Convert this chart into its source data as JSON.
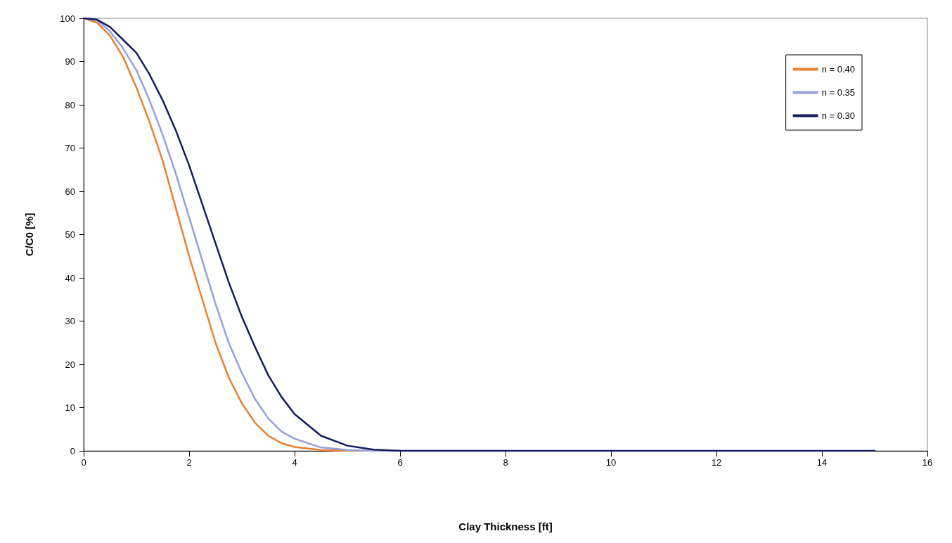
{
  "chart_data": {
    "type": "line",
    "xlabel": "Clay Thickness [ft]",
    "ylabel": "C/C0 [%]",
    "xlim": [
      0,
      16
    ],
    "xticks": [
      0,
      2,
      4,
      6,
      8,
      10,
      12,
      14,
      16
    ],
    "ylim": [
      0,
      100
    ],
    "yticks": [
      0,
      10,
      20,
      30,
      40,
      50,
      60,
      70,
      80,
      90,
      100
    ],
    "grid": false,
    "legend": "top right",
    "marker": "none",
    "line_style": "solid",
    "x": [
      0,
      0.25,
      0.5,
      0.75,
      1,
      1.25,
      1.5,
      1.75,
      2,
      2.25,
      2.5,
      2.75,
      3,
      3.25,
      3.5,
      3.75,
      4,
      4.5,
      5,
      5.5,
      6,
      8,
      10,
      12,
      14,
      15
    ],
    "series": [
      {
        "name": "n = 0.40",
        "color": "#e8812f",
        "values": [
          100,
          99,
          96,
          91,
          84,
          76,
          67,
          56,
          45,
          35,
          25,
          17,
          11,
          6.5,
          3.5,
          1.8,
          0.9,
          0.2,
          0,
          0,
          null,
          null,
          null,
          null,
          null,
          null
        ]
      },
      {
        "name": "n = 0.35",
        "color": "#959fdc",
        "values": [
          100,
          99.5,
          97,
          93,
          88,
          81,
          73,
          64,
          54,
          44,
          34,
          25,
          18,
          12,
          7.5,
          4.5,
          2.8,
          0.8,
          0.2,
          0,
          0,
          0,
          null,
          null,
          null,
          null
        ]
      },
      {
        "name": "n = 0.30",
        "color": "#141c5c",
        "values": [
          100,
          99.7,
          98,
          95,
          92,
          87,
          81,
          74,
          66,
          57,
          48,
          39,
          31,
          24,
          17.5,
          12.5,
          8.5,
          3.5,
          1.2,
          0.3,
          0,
          0,
          0,
          0,
          0,
          0
        ]
      }
    ]
  }
}
